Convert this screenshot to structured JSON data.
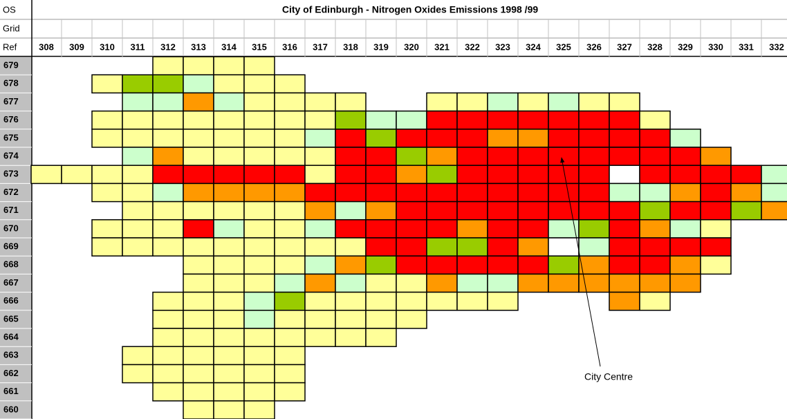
{
  "title": "City of Edinburgh - Nitrogen Oxides Emissions 1998 /99",
  "header_labels": [
    "OS",
    "Grid",
    "Ref"
  ],
  "columns": [
    308,
    309,
    310,
    311,
    312,
    313,
    314,
    315,
    316,
    317,
    318,
    319,
    320,
    321,
    322,
    323,
    324,
    325,
    326,
    327,
    328,
    329,
    330,
    331,
    332
  ],
  "annotation": "City Centre",
  "rows": [
    {
      "label": 679,
      "cells": [
        null,
        null,
        null,
        null,
        "#ffff99",
        "#ffff99",
        "#ffff99",
        "#ffff99",
        null,
        null,
        null,
        null,
        null,
        null,
        null,
        null,
        null,
        null,
        null,
        null,
        null,
        null,
        null,
        null,
        null
      ]
    },
    {
      "label": 678,
      "cells": [
        null,
        null,
        "#ffff99",
        "#99cc00",
        "#99cc00",
        "#ccffcc",
        "#ffff99",
        "#ffff99",
        "#ffff99",
        null,
        null,
        null,
        null,
        null,
        null,
        null,
        null,
        null,
        null,
        null,
        null,
        null,
        null,
        null,
        null
      ]
    },
    {
      "label": 677,
      "cells": [
        null,
        null,
        null,
        "#ccffcc",
        "#ccffcc",
        "#ff9900",
        "#ccffcc",
        "#ffff99",
        "#ffff99",
        "#ffff99",
        "#ffff99",
        null,
        null,
        "#ffff99",
        "#ffff99",
        "#ccffcc",
        "#ffff99",
        "#ccffcc",
        "#ffff99",
        "#ffff99",
        null,
        null,
        null,
        null,
        null
      ]
    },
    {
      "label": 676,
      "cells": [
        null,
        null,
        "#ffff99",
        "#ffff99",
        "#ffff99",
        "#ffff99",
        "#ffff99",
        "#ffff99",
        "#ffff99",
        "#ffff99",
        "#99cc00",
        "#ccffcc",
        "#ccffcc",
        "#ff0000",
        "#ff0000",
        "#ff0000",
        "#ff0000",
        "#ff0000",
        "#ff0000",
        "#ff0000",
        "#ffff99",
        null,
        null,
        null,
        null
      ]
    },
    {
      "label": 675,
      "cells": [
        null,
        null,
        "#ffff99",
        "#ffff99",
        "#ffff99",
        "#ffff99",
        "#ffff99",
        "#ffff99",
        "#ffff99",
        "#ccffcc",
        "#ff0000",
        "#99cc00",
        "#ff0000",
        "#ff0000",
        "#ff0000",
        "#ff9900",
        "#ff9900",
        "#ff0000",
        "#ff0000",
        "#ff0000",
        "#ff0000",
        "#ccffcc",
        null,
        null,
        null
      ]
    },
    {
      "label": 674,
      "cells": [
        null,
        null,
        null,
        "#ccffcc",
        "#ff9900",
        "#ffff99",
        "#ffff99",
        "#ffff99",
        "#ffff99",
        "#ffff99",
        "#ff0000",
        "#ff0000",
        "#99cc00",
        "#ff9900",
        "#ff0000",
        "#ff0000",
        "#ff0000",
        "#ff0000",
        "#ff0000",
        "#ff0000",
        "#ff0000",
        "#ff0000",
        "#ff9900",
        null,
        null
      ]
    },
    {
      "label": 673,
      "cells": [
        "#ffff99",
        "#ffff99",
        "#ffff99",
        "#ffff99",
        "#ff0000",
        "#ff0000",
        "#ff0000",
        "#ff0000",
        "#ff0000",
        "#ffff99",
        "#ff0000",
        "#ff0000",
        "#ff9900",
        "#99cc00",
        "#ff0000",
        "#ff0000",
        "#ff0000",
        "#ff0000",
        "#ff0000",
        "#ffffff",
        "#ff0000",
        "#ff0000",
        "#ff0000",
        "#ff0000",
        "#ccffcc"
      ]
    },
    {
      "label": 672,
      "cells": [
        null,
        null,
        "#ffff99",
        "#ffff99",
        "#ccffcc",
        "#ff9900",
        "#ff9900",
        "#ff9900",
        "#ff9900",
        "#ff0000",
        "#ff0000",
        "#ff0000",
        "#ff0000",
        "#ff0000",
        "#ff0000",
        "#ff0000",
        "#ff0000",
        "#ff0000",
        "#ff0000",
        "#ccffcc",
        "#ccffcc",
        "#ff9900",
        "#ff0000",
        "#ff9900",
        "#ccffcc"
      ]
    },
    {
      "label": 671,
      "cells": [
        null,
        null,
        null,
        "#ffff99",
        "#ffff99",
        "#ffff99",
        "#ffff99",
        "#ffff99",
        "#ffff99",
        "#ff9900",
        "#ccffcc",
        "#ff9900",
        "#ff0000",
        "#ff0000",
        "#ff0000",
        "#ff0000",
        "#ff0000",
        "#ff0000",
        "#ff0000",
        "#ff0000",
        "#99cc00",
        "#ff0000",
        "#ff0000",
        "#99cc00",
        "#ff9900"
      ]
    },
    {
      "label": 670,
      "cells": [
        null,
        null,
        "#ffff99",
        "#ffff99",
        "#ffff99",
        "#ff0000",
        "#ccffcc",
        "#ffff99",
        "#ffff99",
        "#ccffcc",
        "#ff0000",
        "#ff0000",
        "#ff0000",
        "#ff0000",
        "#ff9900",
        "#ff0000",
        "#ff0000",
        "#ccffcc",
        "#99cc00",
        "#ff0000",
        "#ff9900",
        "#ccffcc",
        "#ffff99",
        null,
        null
      ]
    },
    {
      "label": 669,
      "cells": [
        null,
        null,
        "#ffff99",
        "#ffff99",
        "#ffff99",
        "#ffff99",
        "#ffff99",
        "#ffff99",
        "#ffff99",
        "#ffff99",
        "#ffff99",
        "#ff0000",
        "#ff0000",
        "#99cc00",
        "#99cc00",
        "#ff0000",
        "#ff9900",
        "#ffffff",
        "#ccffcc",
        "#ff0000",
        "#ff0000",
        "#ff0000",
        "#ff0000",
        null,
        null
      ]
    },
    {
      "label": 668,
      "cells": [
        null,
        null,
        null,
        null,
        null,
        "#ffff99",
        "#ffff99",
        "#ffff99",
        "#ffff99",
        "#ccffcc",
        "#ff9900",
        "#99cc00",
        "#ff0000",
        "#ff0000",
        "#ff0000",
        "#ff0000",
        "#ff0000",
        "#99cc00",
        "#ff9900",
        "#ff0000",
        "#ff0000",
        "#ff9900",
        "#ffff99",
        null,
        null
      ]
    },
    {
      "label": 667,
      "cells": [
        null,
        null,
        null,
        null,
        null,
        "#ffff99",
        "#ffff99",
        "#ffff99",
        "#ccffcc",
        "#ff9900",
        "#ccffcc",
        "#ffff99",
        "#ffff99",
        "#ff9900",
        "#ccffcc",
        "#ccffcc",
        "#ff9900",
        "#ff9900",
        "#ff9900",
        "#ff9900",
        "#ff9900",
        "#ff9900",
        null,
        null,
        null
      ]
    },
    {
      "label": 666,
      "cells": [
        null,
        null,
        null,
        null,
        "#ffff99",
        "#ffff99",
        "#ffff99",
        "#ccffcc",
        "#99cc00",
        "#ffff99",
        "#ffff99",
        "#ffff99",
        "#ffff99",
        "#ffff99",
        "#ffff99",
        "#ffff99",
        null,
        null,
        null,
        "#ff9900",
        "#ffff99",
        null,
        null,
        null,
        null
      ]
    },
    {
      "label": 665,
      "cells": [
        null,
        null,
        null,
        null,
        "#ffff99",
        "#ffff99",
        "#ffff99",
        "#ccffcc",
        "#ffff99",
        "#ffff99",
        "#ffff99",
        "#ffff99",
        "#ffff99",
        null,
        null,
        null,
        null,
        null,
        null,
        null,
        null,
        null,
        null,
        null,
        null
      ]
    },
    {
      "label": 664,
      "cells": [
        null,
        null,
        null,
        null,
        "#ffff99",
        "#ffff99",
        "#ffff99",
        "#ffff99",
        "#ffff99",
        "#ffff99",
        "#ffff99",
        "#ffff99",
        null,
        null,
        null,
        null,
        null,
        null,
        null,
        null,
        null,
        null,
        null,
        null,
        null
      ]
    },
    {
      "label": 663,
      "cells": [
        null,
        null,
        null,
        "#ffff99",
        "#ffff99",
        "#ffff99",
        "#ffff99",
        "#ffff99",
        "#ffff99",
        null,
        null,
        null,
        null,
        null,
        null,
        null,
        null,
        null,
        null,
        null,
        null,
        null,
        null,
        null,
        null
      ]
    },
    {
      "label": 662,
      "cells": [
        null,
        null,
        null,
        "#ffff99",
        "#ffff99",
        "#ffff99",
        "#ffff99",
        "#ffff99",
        "#ffff99",
        null,
        null,
        null,
        null,
        null,
        null,
        null,
        null,
        null,
        null,
        null,
        null,
        null,
        null,
        null,
        null
      ]
    },
    {
      "label": 661,
      "cells": [
        null,
        null,
        null,
        null,
        "#ffff99",
        "#ffff99",
        "#ffff99",
        "#ffff99",
        "#ffff99",
        null,
        null,
        null,
        null,
        null,
        null,
        null,
        null,
        null,
        null,
        null,
        null,
        null,
        null,
        null,
        null
      ]
    },
    {
      "label": 660,
      "cells": [
        null,
        null,
        null,
        null,
        null,
        "#ffff99",
        "#ffff99",
        "#ffff99",
        null,
        null,
        null,
        null,
        null,
        null,
        null,
        null,
        null,
        null,
        null,
        null,
        null,
        null,
        null,
        null,
        null
      ]
    }
  ]
}
